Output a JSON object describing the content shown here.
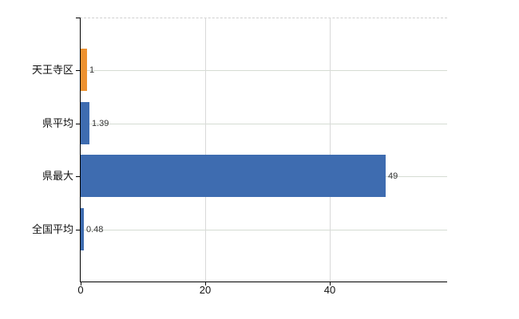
{
  "chart_data": {
    "type": "bar",
    "orientation": "horizontal",
    "title": "",
    "categories": [
      "天王寺区",
      "県平均",
      "県最大",
      "全国平均"
    ],
    "values": [
      1,
      1.39,
      49,
      0.48
    ],
    "value_labels": [
      "1",
      "1.39",
      "49",
      "0.48"
    ],
    "bar_colors": [
      "#ee9230",
      "#3e6cb0",
      "#3e6cb0",
      "#3e6cb0"
    ],
    "x_ticks": [
      0,
      20,
      40
    ],
    "x_tick_labels": [
      "0",
      "20",
      "40"
    ],
    "xlim": [
      0,
      58.8
    ],
    "grid": "on",
    "legend": "none"
  },
  "colors": {
    "highlight_orange": "#ee9230",
    "bar_blue": "#3e6cb0",
    "axis_black": "#000000",
    "gridline_vertical": "#d9d9d9",
    "gridline_horizontal": "#d5dcd3",
    "gridline_top_dashed": "#cfcfcf",
    "label_text": "#111111",
    "value_text": "#333333",
    "background": "#ffffff"
  }
}
